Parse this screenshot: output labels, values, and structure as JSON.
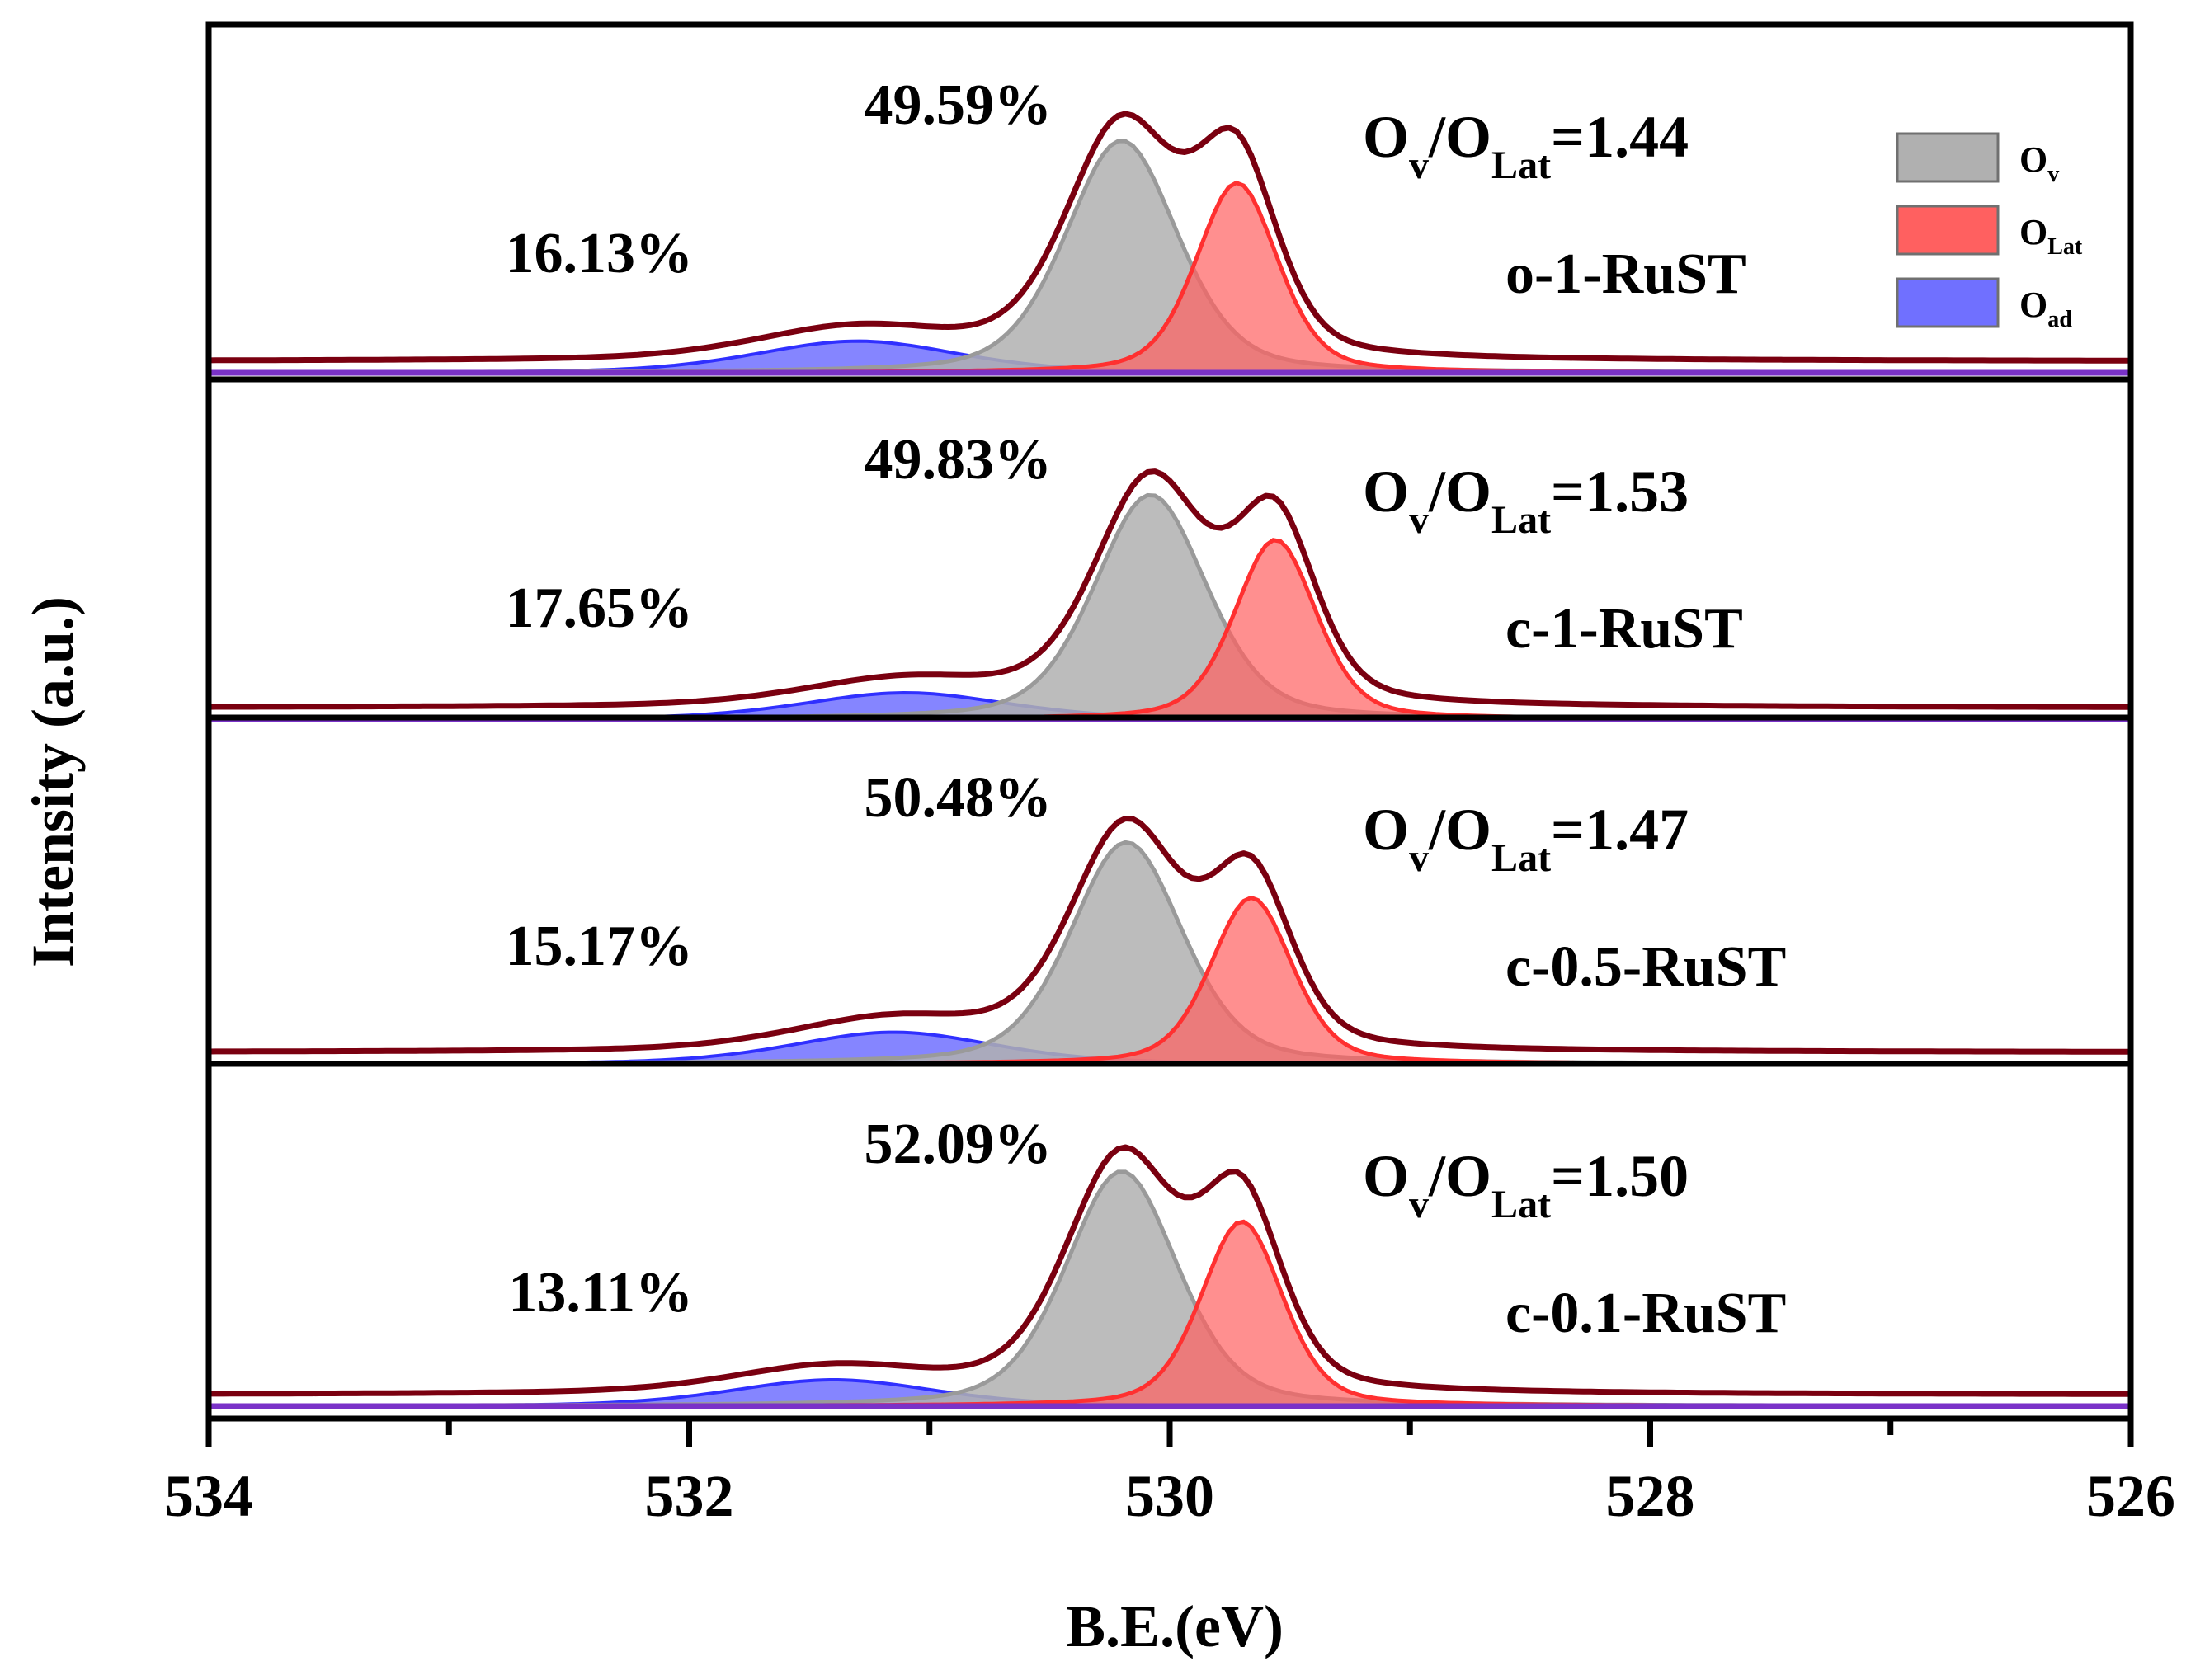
{
  "chart_data": {
    "type": "area",
    "xlabel": "B.E.(eV)",
    "ylabel": "Intensity (a.u.)",
    "xlim": [
      534,
      526
    ],
    "x_ticks": [
      "534",
      "532",
      "530",
      "528",
      "526"
    ],
    "colors": {
      "ov": "#b0b0b0",
      "olat": "#ff6060",
      "oad": "#7070ff",
      "envelope": "#7a0010",
      "baseline": "#7a32c8",
      "frame": "#000000"
    },
    "legend": {
      "location": "top-right",
      "items": [
        {
          "key": "ov",
          "label": "O",
          "sub": "v"
        },
        {
          "key": "olat",
          "label": "O",
          "sub": "Lat"
        },
        {
          "key": "oad",
          "label": "O",
          "sub": "ad"
        }
      ]
    },
    "ratio_parts": {
      "o": "O",
      "sub_v": "v",
      "slash": "/",
      "sub_lat": "Lat"
    },
    "panels": [
      {
        "sample": "o-1-RuST",
        "ov_percent": "49.59%",
        "oad_percent": "16.13%",
        "ratio_value": "=1.44",
        "peaks": {
          "ov": {
            "center": 530.2,
            "height": 0.88,
            "width": 0.55
          },
          "olat": {
            "center": 529.72,
            "height": 0.72,
            "width": 0.4
          },
          "oad": {
            "center": 531.3,
            "height": 0.12,
            "width": 1.0
          }
        }
      },
      {
        "sample": "c-1-RuST",
        "ov_percent": "49.83%",
        "oad_percent": "17.65%",
        "ratio_value": "=1.53",
        "peaks": {
          "ov": {
            "center": 530.08,
            "height": 0.85,
            "width": 0.55
          },
          "olat": {
            "center": 529.56,
            "height": 0.68,
            "width": 0.4
          },
          "oad": {
            "center": 531.1,
            "height": 0.1,
            "width": 1.0
          }
        }
      },
      {
        "sample": "c-0.5-RuST",
        "ov_percent": "50.48%",
        "oad_percent": "15.17%",
        "ratio_value": "=1.47",
        "peaks": {
          "ov": {
            "center": 530.18,
            "height": 0.84,
            "width": 0.55
          },
          "olat": {
            "center": 529.66,
            "height": 0.63,
            "width": 0.4
          },
          "oad": {
            "center": 531.15,
            "height": 0.12,
            "width": 1.0
          }
        }
      },
      {
        "sample": "c-0.1-RuST",
        "ov_percent": "52.09%",
        "oad_percent": "13.11%",
        "ratio_value": "=1.50",
        "peaks": {
          "ov": {
            "center": 530.2,
            "height": 0.89,
            "width": 0.55
          },
          "olat": {
            "center": 529.7,
            "height": 0.7,
            "width": 0.4
          },
          "oad": {
            "center": 531.4,
            "height": 0.1,
            "width": 1.0
          }
        }
      }
    ]
  }
}
